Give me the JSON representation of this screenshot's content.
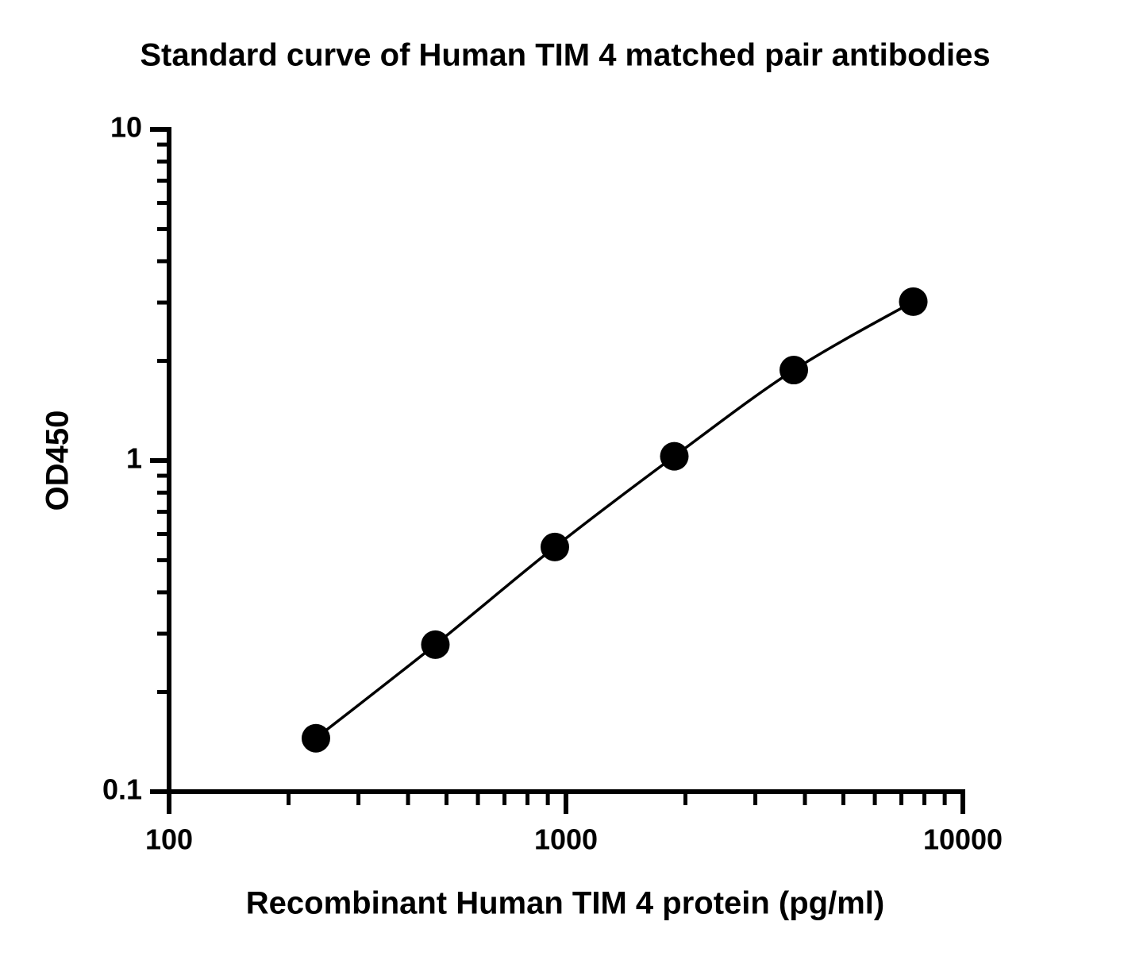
{
  "chart_data": {
    "type": "scatter",
    "title": "Standard curve of Human TIM 4 matched pair antibodies",
    "x_label": "Recombinant Human TIM 4 protein (pg/ml)",
    "y_label": "OD450",
    "x": [
      234.4,
      468.75,
      937.5,
      1875,
      3750,
      7500
    ],
    "series": [
      {
        "color": "#000000",
        "values": [
          0.145,
          0.278,
          0.548,
          1.03,
          1.876,
          3.02
        ]
      }
    ],
    "connect": true,
    "xscale": "log",
    "yscale": "log",
    "xlim": [
      100,
      10000
    ],
    "ylim": [
      0.1,
      10
    ],
    "xticks": [
      100,
      1000,
      10000
    ],
    "yticks": [
      0.1,
      1,
      10
    ],
    "xminorticks": [
      200,
      300,
      400,
      500,
      600,
      700,
      800,
      900,
      2000,
      3000,
      4000,
      5000,
      6000,
      7000,
      8000,
      9000
    ],
    "yminorticks": [
      0.2,
      0.3,
      0.4,
      0.5,
      0.6,
      0.7,
      0.8,
      0.9,
      2,
      3,
      4,
      5,
      6,
      7,
      8,
      9
    ],
    "grid": false
  }
}
